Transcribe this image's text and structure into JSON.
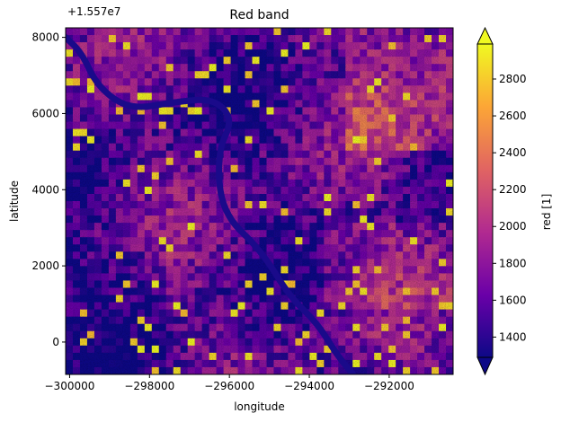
{
  "chart_data": {
    "type": "heatmap",
    "title": "Red band",
    "xlabel": "longitude",
    "ylabel": "latitude",
    "x_offset_label": "",
    "y_offset_label": "+1.557e7",
    "x_range": [
      -300100,
      -290400
    ],
    "y_range": [
      -850,
      8250
    ],
    "x_ticks": [
      -300000,
      -298000,
      -296000,
      -294000,
      -292000
    ],
    "x_tick_labels": [
      "−300000",
      "−298000",
      "−296000",
      "−294000",
      "−292000"
    ],
    "y_ticks": [
      0,
      2000,
      4000,
      6000,
      8000
    ],
    "y_tick_labels": [
      "0",
      "2000",
      "4000",
      "6000",
      "8000"
    ],
    "colorbar": {
      "label": "red [1]",
      "colormap": "plasma",
      "range": [
        1290,
        2990
      ],
      "ticks": [
        1400,
        1600,
        1800,
        2000,
        2200,
        2400,
        2600,
        2800
      ],
      "tick_labels": [
        "1400",
        "1600",
        "1800",
        "2000",
        "2200",
        "2400",
        "2600",
        "2800"
      ],
      "extend": "both"
    },
    "colormap_stops": [
      "#0d0887",
      "#6a00a8",
      "#b12a90",
      "#e16462",
      "#fca636",
      "#f0f921"
    ],
    "river_path_data_coords": [
      [
        -300100,
        8000
      ],
      [
        -299700,
        7600
      ],
      [
        -299300,
        6700
      ],
      [
        -298500,
        6100
      ],
      [
        -297400,
        6300
      ],
      [
        -296400,
        6400
      ],
      [
        -295900,
        5850
      ],
      [
        -296300,
        5000
      ],
      [
        -296200,
        3400
      ],
      [
        -295200,
        2400
      ],
      [
        -294500,
        1200
      ],
      [
        -293800,
        500
      ],
      [
        -293300,
        -350
      ],
      [
        -292900,
        -850
      ]
    ]
  }
}
